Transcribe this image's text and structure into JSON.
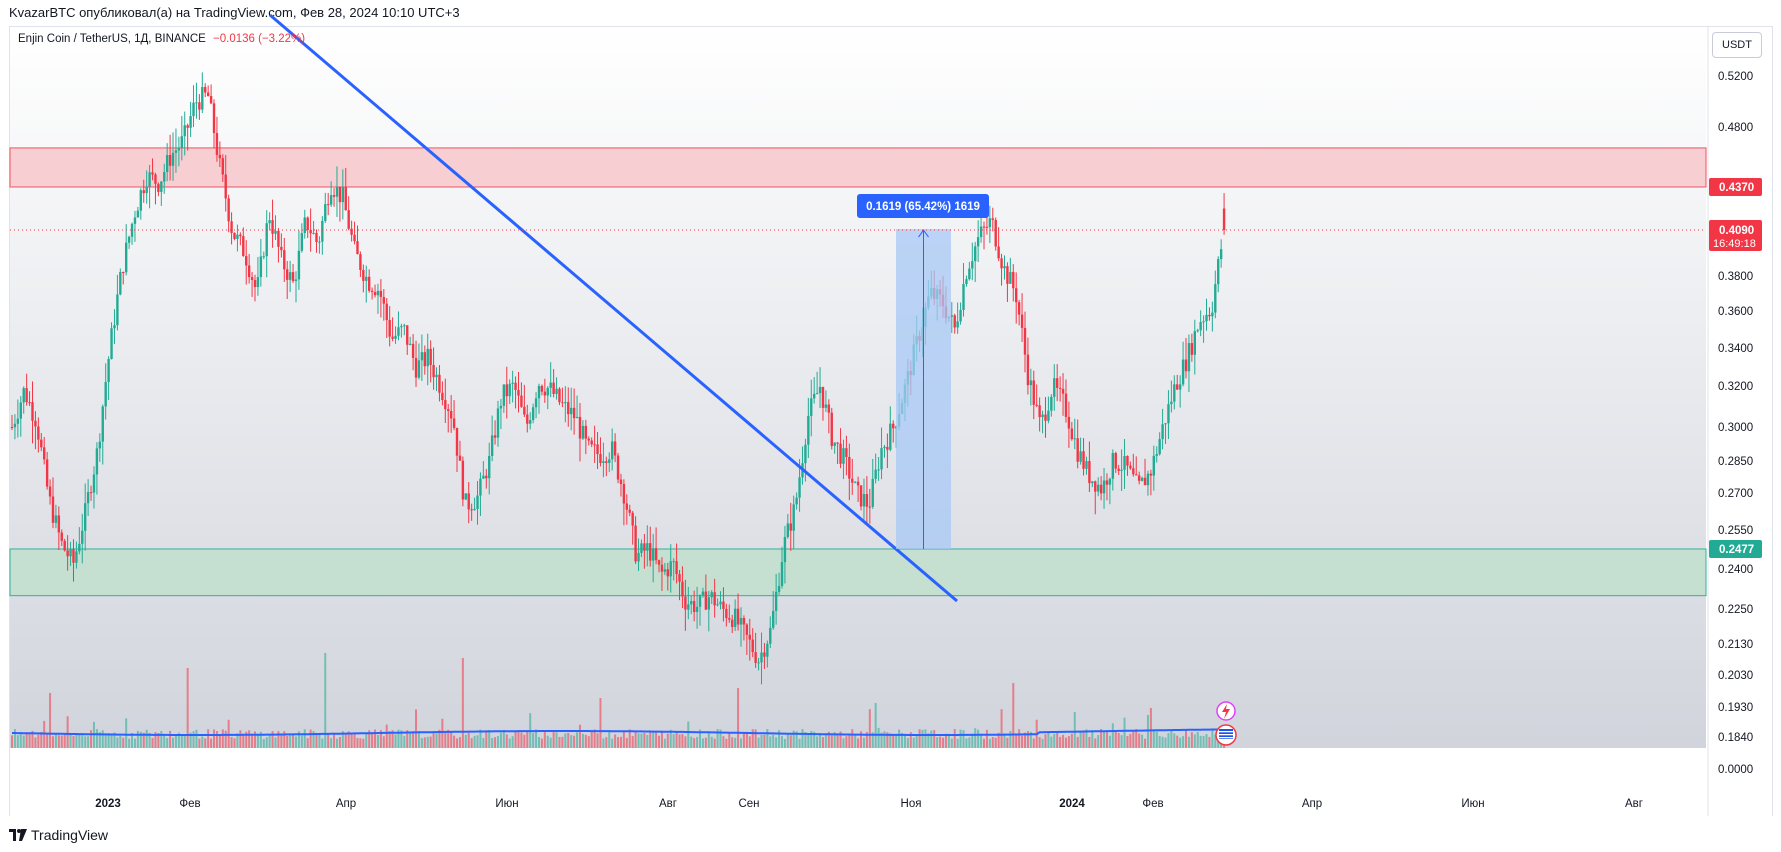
{
  "header": {
    "publish_line": "KvazarBTC опубликовал(а) на TradingView.com, Фев 28, 2024 10:10 UTC+3"
  },
  "symbol": {
    "name": "Enjin Coin / TetherUS, 1Д, BINANCE",
    "change": "−0.0136 (−3.22%)"
  },
  "currency_button": "USDT",
  "footer": {
    "brand": "TradingView"
  },
  "colors": {
    "up": "#22ab94",
    "down": "#f23645",
    "trendline": "#2962ff",
    "resistance_zone": "#f8c9cd",
    "support_zone": "#c3e0cf",
    "measure_box": "#a7c8f6",
    "ma_line": "#2962ff"
  },
  "chart_data": {
    "type": "candlestick",
    "timeframe": "1D",
    "y_axis": {
      "scale": "log",
      "ticks": [
        "0.5200",
        "0.4800",
        "0.4370",
        "0.4090",
        "0.3800",
        "0.3600",
        "0.3400",
        "0.3200",
        "0.3000",
        "0.2850",
        "0.2700",
        "0.2550",
        "0.2477",
        "0.2400",
        "0.2250",
        "0.2130",
        "0.2030",
        "0.1930",
        "0.1840",
        "0.0000"
      ]
    },
    "x_axis": {
      "ticks": [
        "2023",
        "Фев",
        "Апр",
        "Июн",
        "Авг",
        "Сен",
        "Ноя",
        "2024",
        "Фев",
        "Апр",
        "Июн",
        "Авг"
      ]
    },
    "last_price": {
      "value": "0.4090",
      "countdown": "16:49:18"
    },
    "price_labels": [
      {
        "value": "0.4370",
        "color": "#f23645"
      },
      {
        "value": "0.2477",
        "color": "#22ab94"
      }
    ],
    "zones": [
      {
        "name": "resistance",
        "from": 0.437,
        "to": 0.465
      },
      {
        "name": "support",
        "from": 0.23,
        "to": 0.2477
      }
    ],
    "trendline": {
      "from_price": 0.575,
      "to_price": 0.228
    },
    "measurement": {
      "label": "0.1619 (65.42%) 1619",
      "from_price": 0.2477,
      "to_price": 0.4096
    },
    "price_path": [
      0.3,
      0.318,
      0.303,
      0.268,
      0.25,
      0.242,
      0.262,
      0.29,
      0.34,
      0.385,
      0.42,
      0.445,
      0.44,
      0.46,
      0.47,
      0.5,
      0.505,
      0.45,
      0.408,
      0.395,
      0.37,
      0.42,
      0.39,
      0.375,
      0.415,
      0.4,
      0.44,
      0.43,
      0.395,
      0.378,
      0.372,
      0.345,
      0.35,
      0.33,
      0.335,
      0.32,
      0.305,
      0.265,
      0.268,
      0.285,
      0.315,
      0.32,
      0.3,
      0.322,
      0.318,
      0.31,
      0.305,
      0.29,
      0.288,
      0.29,
      0.27,
      0.245,
      0.248,
      0.238,
      0.242,
      0.228,
      0.226,
      0.23,
      0.225,
      0.222,
      0.215,
      0.208,
      0.218,
      0.248,
      0.265,
      0.305,
      0.32,
      0.295,
      0.285,
      0.27,
      0.265,
      0.29,
      0.3,
      0.32,
      0.345,
      0.37,
      0.365,
      0.35,
      0.385,
      0.405,
      0.415,
      0.385,
      0.37,
      0.325,
      0.3,
      0.32,
      0.31,
      0.29,
      0.278,
      0.272,
      0.285,
      0.282,
      0.272,
      0.28,
      0.3,
      0.32,
      0.335,
      0.355,
      0.362,
      0.409
    ],
    "volume": {
      "baseline_ma": true,
      "spikes": [
        0.11,
        0.16,
        0.19,
        0.18,
        0.1,
        0.12,
        0.09,
        0.13,
        0.08
      ]
    }
  }
}
